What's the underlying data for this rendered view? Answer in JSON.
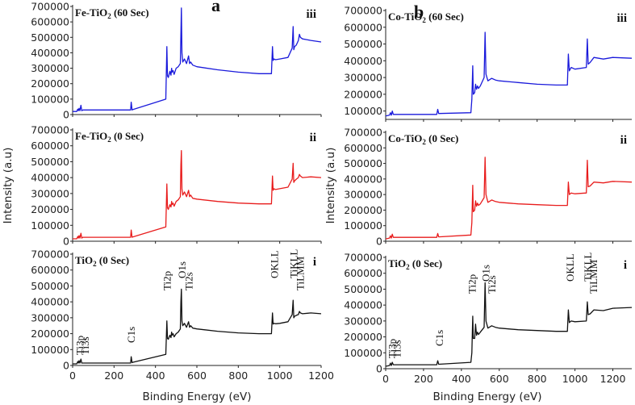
{
  "figure": {
    "panel_labels": [
      "a",
      "b"
    ],
    "shared_xlabel": "Binding Energy (eV)",
    "ylabel": "Intensity (a.u)"
  },
  "chart_data": [
    {
      "type": "line",
      "panel": "a",
      "row": "iii",
      "title": "Fe-TiO2 (60 Sec)",
      "title_main": "Fe-TiO",
      "title_sub": "2",
      "title_tail": " (60 Sec)",
      "roman": "iii",
      "color": "#1a1adb",
      "xlim": [
        0,
        1200
      ],
      "ylim": [
        0,
        700000
      ],
      "yticks": [
        0,
        100000,
        200000,
        300000,
        400000,
        500000,
        600000,
        700000
      ],
      "xticks": [],
      "series": [
        {
          "x": [
            0,
            20,
            25,
            28,
            31,
            35,
            40,
            44,
            50,
            280,
            283,
            287,
            290,
            450,
            455,
            458,
            462,
            470,
            475,
            478,
            480,
            485,
            490,
            500,
            505,
            510,
            515,
            520,
            523,
            525,
            528,
            532,
            540,
            550,
            560,
            565,
            570,
            580,
            600,
            700,
            800,
            900,
            960,
            965,
            968,
            972,
            980,
            1000,
            1040,
            1060,
            1065,
            1068,
            1072,
            1080,
            1090,
            1095,
            1100,
            1110,
            1150,
            1200
          ],
          "y": [
            20000,
            20000,
            35000,
            25000,
            40000,
            25000,
            60000,
            25000,
            30000,
            30000,
            80000,
            30000,
            32000,
            100000,
            440000,
            250000,
            240000,
            280000,
            255000,
            300000,
            275000,
            285000,
            260000,
            300000,
            305000,
            310000,
            320000,
            330000,
            520000,
            690000,
            400000,
            340000,
            360000,
            330000,
            380000,
            330000,
            340000,
            320000,
            310000,
            290000,
            275000,
            265000,
            265000,
            440000,
            350000,
            360000,
            355000,
            360000,
            370000,
            430000,
            570000,
            420000,
            440000,
            450000,
            480000,
            520000,
            500000,
            490000,
            480000,
            470000
          ]
        }
      ]
    },
    {
      "type": "line",
      "panel": "b",
      "row": "iii",
      "title": "Co-TiO2 (60 Sec)",
      "title_main": "Co-TiO",
      "title_sub": "2",
      "title_tail": " (60 Sec)",
      "roman": "iii",
      "color": "#1a1adb",
      "xlim": [
        0,
        1300
      ],
      "ylim": [
        50000,
        700000
      ],
      "yticks": [
        100000,
        200000,
        300000,
        400000,
        500000,
        600000,
        700000
      ],
      "xticks": [],
      "series": [
        {
          "x": [
            0,
            20,
            25,
            30,
            35,
            40,
            50,
            270,
            275,
            280,
            450,
            455,
            460,
            463,
            470,
            475,
            480,
            485,
            490,
            500,
            520,
            525,
            530,
            540,
            560,
            580,
            600,
            700,
            800,
            900,
            960,
            965,
            970,
            980,
            1000,
            1060,
            1065,
            1070,
            1080,
            1100,
            1150,
            1200,
            1300
          ],
          "y": [
            70000,
            75000,
            90000,
            75000,
            100000,
            80000,
            80000,
            80000,
            110000,
            85000,
            90000,
            170000,
            370000,
            200000,
            210000,
            260000,
            230000,
            250000,
            235000,
            250000,
            300000,
            570000,
            320000,
            280000,
            295000,
            285000,
            280000,
            270000,
            260000,
            255000,
            255000,
            440000,
            340000,
            360000,
            350000,
            360000,
            530000,
            380000,
            390000,
            420000,
            410000,
            420000,
            415000
          ]
        }
      ]
    },
    {
      "type": "line",
      "panel": "a",
      "row": "ii",
      "title": "Fe-TiO2 (0 Sec)",
      "title_main": "Fe-TiO",
      "title_sub": "2",
      "title_tail": " (0 Sec)",
      "roman": "ii",
      "color": "#e81c1c",
      "xlim": [
        0,
        1200
      ],
      "ylim": [
        0,
        700000
      ],
      "yticks": [
        0,
        100000,
        200000,
        300000,
        400000,
        500000,
        600000,
        700000
      ],
      "xticks": [],
      "series": [
        {
          "x": [
            0,
            20,
            25,
            28,
            31,
            35,
            40,
            44,
            50,
            280,
            283,
            287,
            290,
            450,
            455,
            458,
            462,
            470,
            475,
            478,
            480,
            485,
            490,
            500,
            505,
            510,
            515,
            520,
            523,
            525,
            528,
            532,
            540,
            550,
            560,
            565,
            570,
            580,
            600,
            700,
            800,
            900,
            960,
            965,
            968,
            972,
            980,
            1000,
            1040,
            1060,
            1065,
            1068,
            1072,
            1080,
            1090,
            1095,
            1100,
            1110,
            1150,
            1200
          ],
          "y": [
            15000,
            15000,
            30000,
            20000,
            35000,
            20000,
            50000,
            20000,
            25000,
            25000,
            70000,
            25000,
            27000,
            90000,
            360000,
            210000,
            200000,
            230000,
            215000,
            250000,
            230000,
            240000,
            220000,
            250000,
            255000,
            260000,
            270000,
            280000,
            480000,
            570000,
            330000,
            290000,
            310000,
            280000,
            320000,
            280000,
            290000,
            270000,
            265000,
            250000,
            240000,
            235000,
            235000,
            410000,
            320000,
            330000,
            325000,
            330000,
            340000,
            390000,
            490000,
            370000,
            380000,
            390000,
            400000,
            420000,
            410000,
            400000,
            405000,
            400000
          ]
        }
      ]
    },
    {
      "type": "line",
      "panel": "b",
      "row": "ii",
      "title": "Co-TiO2 (0 Sec)",
      "title_main": "Co-TiO",
      "title_sub": "2",
      "title_tail": " (0 Sec)",
      "roman": "ii",
      "color": "#e81c1c",
      "xlim": [
        0,
        1300
      ],
      "ylim": [
        0,
        700000
      ],
      "yticks": [
        0,
        100000,
        200000,
        300000,
        400000,
        500000,
        600000,
        700000
      ],
      "xticks": [],
      "series": [
        {
          "x": [
            0,
            20,
            25,
            30,
            35,
            40,
            50,
            270,
            275,
            280,
            450,
            455,
            460,
            463,
            470,
            475,
            480,
            485,
            490,
            500,
            520,
            525,
            530,
            540,
            560,
            580,
            600,
            700,
            800,
            900,
            960,
            965,
            970,
            980,
            1000,
            1060,
            1065,
            1070,
            1080,
            1100,
            1150,
            1200,
            1300
          ],
          "y": [
            15000,
            20000,
            35000,
            20000,
            45000,
            25000,
            25000,
            25000,
            50000,
            28000,
            40000,
            120000,
            360000,
            190000,
            200000,
            260000,
            225000,
            245000,
            230000,
            240000,
            280000,
            540000,
            300000,
            250000,
            265000,
            255000,
            250000,
            240000,
            235000,
            230000,
            230000,
            380000,
            300000,
            310000,
            305000,
            310000,
            520000,
            350000,
            355000,
            380000,
            375000,
            385000,
            380000
          ]
        }
      ]
    },
    {
      "type": "line",
      "panel": "a",
      "row": "i",
      "title": "TiO2 (0 Sec)",
      "title_main": "TiO",
      "title_sub": "2",
      "title_tail": " (0 Sec)",
      "roman": "i",
      "color": "#111111",
      "xlim": [
        0,
        1200
      ],
      "ylim": [
        0,
        700000
      ],
      "yticks": [
        0,
        100000,
        200000,
        300000,
        400000,
        500000,
        600000,
        700000
      ],
      "xticks": [
        0,
        200,
        400,
        600,
        800,
        1000,
        1200
      ],
      "peak_labels": [
        {
          "text": "Ti3p",
          "x": 37
        },
        {
          "text": "Ti3s",
          "x": 62
        },
        {
          "text": "C1s",
          "x": 285
        },
        {
          "text": "Ti2p",
          "x": 458
        },
        {
          "text": "O1s",
          "x": 530
        },
        {
          "text": "Ti2s",
          "x": 563
        },
        {
          "text": "OKLL",
          "x": 975
        },
        {
          "text": "TiKLL",
          "x": 1070
        },
        {
          "text": "TiLMM",
          "x": 1100
        }
      ],
      "series": [
        {
          "x": [
            0,
            20,
            25,
            28,
            31,
            35,
            40,
            44,
            50,
            280,
            283,
            287,
            290,
            450,
            455,
            458,
            462,
            470,
            475,
            478,
            480,
            485,
            490,
            500,
            505,
            510,
            515,
            520,
            523,
            525,
            528,
            532,
            540,
            550,
            560,
            565,
            570,
            580,
            600,
            700,
            800,
            900,
            960,
            965,
            968,
            972,
            980,
            1000,
            1040,
            1060,
            1065,
            1068,
            1072,
            1080,
            1090,
            1095,
            1100,
            1110,
            1150,
            1200
          ],
          "y": [
            10000,
            10000,
            25000,
            15000,
            30000,
            15000,
            40000,
            15000,
            15000,
            15000,
            55000,
            18000,
            20000,
            70000,
            280000,
            170000,
            165000,
            190000,
            175000,
            210000,
            190000,
            200000,
            180000,
            200000,
            205000,
            210000,
            220000,
            230000,
            400000,
            480000,
            280000,
            250000,
            265000,
            240000,
            275000,
            240000,
            250000,
            235000,
            230000,
            215000,
            205000,
            200000,
            200000,
            330000,
            260000,
            265000,
            262000,
            265000,
            275000,
            320000,
            410000,
            300000,
            310000,
            315000,
            320000,
            340000,
            330000,
            325000,
            330000,
            325000
          ]
        }
      ]
    },
    {
      "type": "line",
      "panel": "b",
      "row": "i",
      "title": "TiO2 (0 Sec)",
      "title_main": "TiO",
      "title_sub": "2",
      "title_tail": " (0 Sec)",
      "roman": "i",
      "color": "#111111",
      "xlim": [
        0,
        1300
      ],
      "ylim": [
        0,
        700000
      ],
      "yticks": [
        0,
        100000,
        200000,
        300000,
        400000,
        500000,
        600000,
        700000
      ],
      "xticks": [
        0,
        200,
        400,
        600,
        800,
        1000,
        1200
      ],
      "peak_labels": [
        {
          "text": "Ti3p",
          "x": 37
        },
        {
          "text": "Ti3s",
          "x": 62
        },
        {
          "text": "C1s",
          "x": 285
        },
        {
          "text": "Ti2p",
          "x": 458
        },
        {
          "text": "O1s",
          "x": 530
        },
        {
          "text": "Ti2s",
          "x": 563
        },
        {
          "text": "OKLL",
          "x": 975
        },
        {
          "text": "TiKLL",
          "x": 1070
        },
        {
          "text": "TiLMM",
          "x": 1100
        }
      ],
      "series": [
        {
          "x": [
            0,
            20,
            25,
            30,
            35,
            40,
            50,
            270,
            275,
            280,
            450,
            455,
            460,
            463,
            470,
            475,
            480,
            485,
            490,
            500,
            520,
            525,
            530,
            540,
            560,
            580,
            600,
            700,
            800,
            900,
            960,
            965,
            970,
            980,
            1000,
            1060,
            1065,
            1070,
            1080,
            1100,
            1150,
            1200,
            1300
          ],
          "y": [
            15000,
            20000,
            35000,
            20000,
            40000,
            25000,
            25000,
            25000,
            50000,
            28000,
            40000,
            100000,
            330000,
            190000,
            190000,
            280000,
            210000,
            230000,
            215000,
            230000,
            260000,
            540000,
            300000,
            255000,
            270000,
            260000,
            255000,
            245000,
            240000,
            235000,
            235000,
            370000,
            290000,
            300000,
            295000,
            300000,
            420000,
            340000,
            345000,
            370000,
            365000,
            380000,
            385000
          ]
        }
      ]
    }
  ]
}
